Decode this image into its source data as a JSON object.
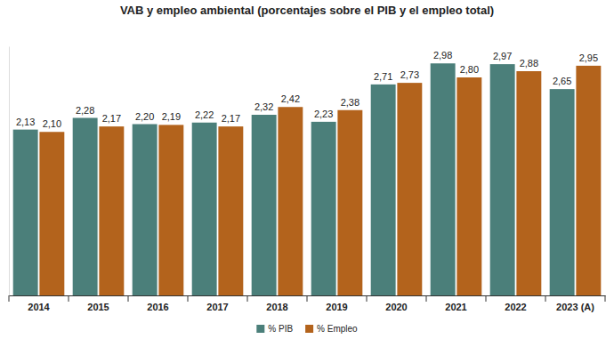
{
  "chart_data": {
    "type": "bar",
    "title": "VAB y empleo ambiental (porcentajes sobre el PIB y el empleo total)",
    "categories": [
      "2014",
      "2015",
      "2016",
      "2017",
      "2018",
      "2019",
      "2020",
      "2021",
      "2022",
      "2023 (A)"
    ],
    "series": [
      {
        "name": "% PIB",
        "color": "#4b7f7a",
        "values": [
          2.13,
          2.28,
          2.2,
          2.22,
          2.32,
          2.23,
          2.71,
          2.98,
          2.97,
          2.65
        ],
        "value_labels": [
          "2,13",
          "2,28",
          "2,20",
          "2,22",
          "2,32",
          "2,23",
          "2,71",
          "2,98",
          "2,97",
          "2,65"
        ]
      },
      {
        "name": "% Empleo",
        "color": "#b3631c",
        "values": [
          2.1,
          2.17,
          2.19,
          2.17,
          2.42,
          2.38,
          2.73,
          2.8,
          2.88,
          2.95
        ],
        "value_labels": [
          "2,10",
          "2,17",
          "2,19",
          "2,17",
          "2,42",
          "2,38",
          "2,73",
          "2,80",
          "2,88",
          "2,95"
        ]
      }
    ],
    "ylim": [
      0,
      3.2
    ],
    "yticks": [],
    "grid": false,
    "legend": "bottom",
    "data_labels": true,
    "tick_labels": "x"
  }
}
